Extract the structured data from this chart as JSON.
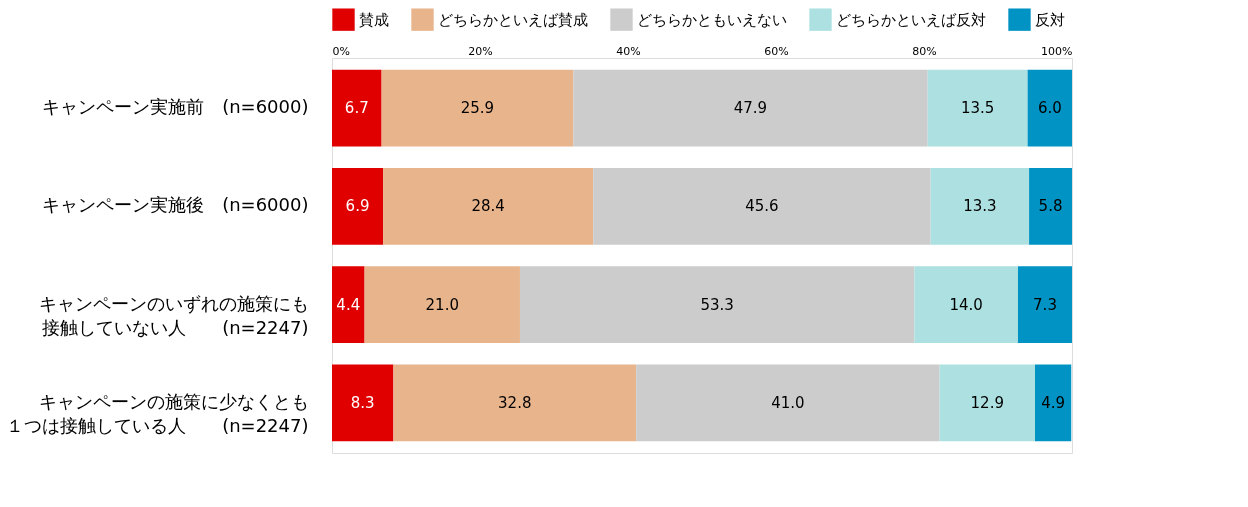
{
  "chart_data": {
    "type": "bar",
    "orientation": "horizontal",
    "stacked": true,
    "legend": "top",
    "grid": false,
    "categories": [
      "キャンペーン実施前　(n=6000)",
      "キャンペーン実施後　(n=6000)",
      "キャンペーンのいずれの施策にも接触していない人　　(n=2247)",
      "キャンペーンの施策に少なくとも１つは接触している人　　(n=2247)"
    ],
    "xlim": [
      0,
      100
    ],
    "xticks": [
      {
        "value": 0,
        "label": "0%"
      },
      {
        "value": 20,
        "label": "20%"
      },
      {
        "value": 40,
        "label": "40%"
      },
      {
        "value": 60,
        "label": "60%"
      },
      {
        "value": 80,
        "label": "80%"
      },
      {
        "value": 100,
        "label": "100%"
      }
    ],
    "series": [
      {
        "name": "賛成",
        "color": "#e00000",
        "values": [
          6.7,
          6.9,
          4.4,
          8.3
        ],
        "value_labels": [
          "6.7",
          "6.9",
          "4.4",
          "8.3"
        ]
      },
      {
        "name": "どちらかといえば賛成",
        "color": "#e8b48c",
        "values": [
          25.9,
          28.4,
          21.0,
          32.8
        ],
        "value_labels": [
          "25.9",
          "28.4",
          "21.0",
          "32.8"
        ]
      },
      {
        "name": "どちらかともいえない",
        "color": "#cccccc",
        "values": [
          47.9,
          45.6,
          53.3,
          41.0
        ],
        "value_labels": [
          "47.9",
          "45.6",
          "53.3",
          "41.0"
        ]
      },
      {
        "name": "どちらかといえば反対",
        "color": "#ade0e0",
        "values": [
          13.5,
          13.3,
          14.0,
          12.9
        ],
        "value_labels": [
          "13.5",
          "13.3",
          "14.0",
          "12.9"
        ]
      },
      {
        "name": "反対",
        "color": "#0093c4",
        "values": [
          6.0,
          5.8,
          7.3,
          4.9
        ],
        "value_labels": [
          "6.0",
          "5.8",
          "7.3",
          "4.9"
        ]
      }
    ]
  }
}
